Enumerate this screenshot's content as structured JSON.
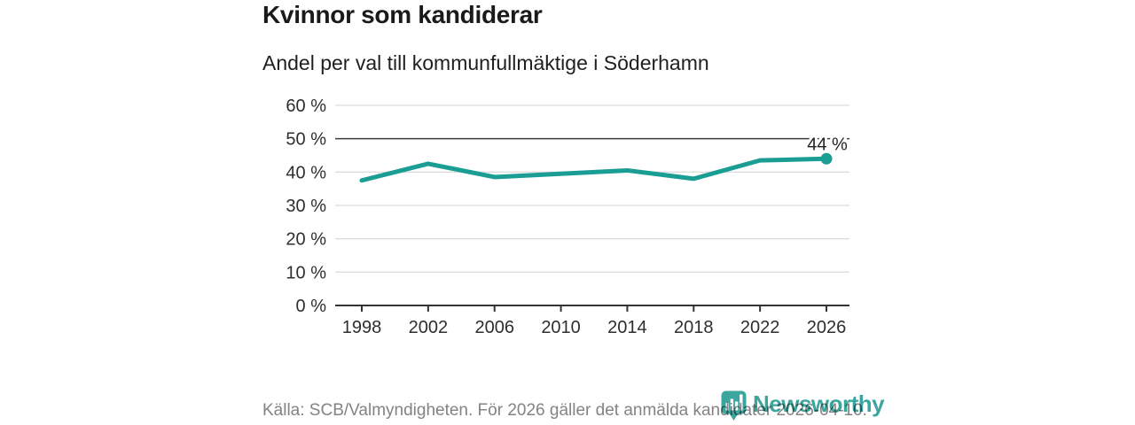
{
  "header": {
    "title": "Kvinnor som kandiderar",
    "subtitle": "Andel per val till kommunfullmäktige i Söderhamn"
  },
  "chart_data": {
    "type": "line",
    "title": "Kvinnor som kandiderar",
    "subtitle": "Andel per val till kommunfullmäktige i Söderhamn",
    "categories": [
      "1998",
      "2002",
      "2006",
      "2010",
      "2014",
      "2018",
      "2022",
      "2026"
    ],
    "values": [
      37.5,
      42.5,
      38.5,
      39.5,
      40.5,
      38,
      43.5,
      44
    ],
    "ylim": [
      0,
      60
    ],
    "ytick_labels": [
      "0 %",
      "10 %",
      "20 %",
      "30 %",
      "40 %",
      "50 %",
      "60 %"
    ],
    "xlabel": "",
    "ylabel": "",
    "grid": true,
    "legend": "none",
    "reference_line_value": 50,
    "last_point_label": "44 %",
    "line_color": "#1a9e93",
    "grid_color": "#dcdcdc",
    "reference_line_color": "#3d3d3d",
    "axis_color": "#333333",
    "tick_label_color": "#2e2e2e",
    "annotation_color": "#222222"
  },
  "footer": {
    "source": "Källa: SCB/Valmyndigheten. För 2026 gäller det anmälda kandidater 2026-04-10.",
    "brand": "Newsworthy",
    "brand_color": "#3ba59e"
  }
}
